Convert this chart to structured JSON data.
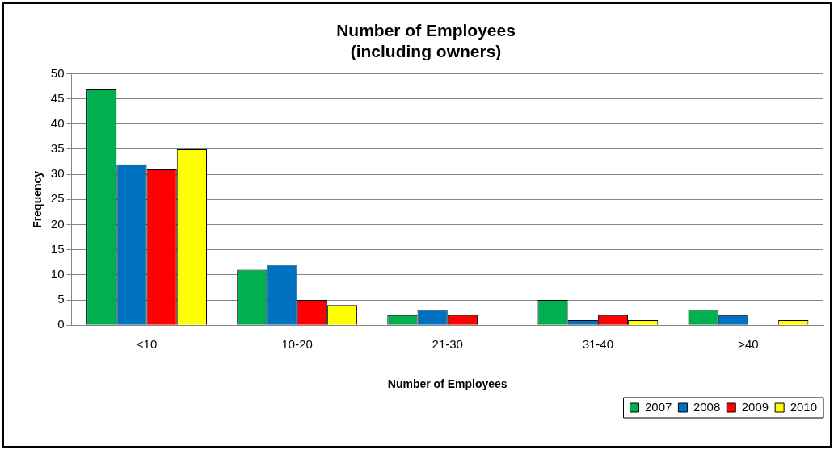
{
  "chart_data": {
    "type": "bar",
    "title": "Number of Employees",
    "subtitle": "(including owners)",
    "xlabel": "Number of Employees",
    "ylabel": "Frequency",
    "categories": [
      "<10",
      "10-20",
      "21-30",
      "31-40",
      ">40"
    ],
    "series": [
      {
        "name": "2007",
        "color": "#00b050",
        "values": [
          47,
          11,
          2,
          5,
          3
        ]
      },
      {
        "name": "2008",
        "color": "#0070c0",
        "values": [
          32,
          12,
          3,
          1,
          2
        ]
      },
      {
        "name": "2009",
        "color": "#ff0000",
        "values": [
          31,
          5,
          2,
          2,
          0
        ]
      },
      {
        "name": "2010",
        "color": "#ffff00",
        "values": [
          35,
          4,
          0,
          1,
          1
        ]
      }
    ],
    "ylim": [
      0,
      50
    ],
    "yticks": [
      0,
      5,
      10,
      15,
      20,
      25,
      30,
      35,
      40,
      45,
      50
    ],
    "grid": "y",
    "legend": "bottom right"
  }
}
